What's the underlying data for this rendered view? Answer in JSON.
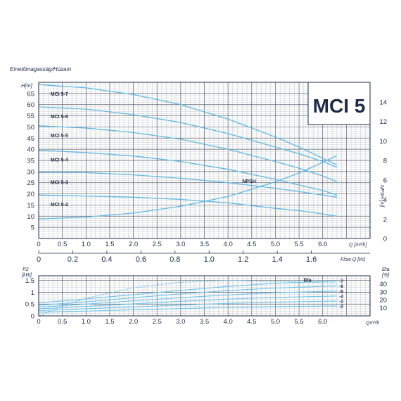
{
  "chart_data": [
    {
      "type": "line",
      "title": "MCI 5",
      "caption": "Emelőmagasság/Hozam",
      "ylabel": "H[m]",
      "y2label": "NPSH [m]",
      "xlabel": "Q [m³/h]",
      "x2label": "Flow Q [l/s]",
      "xlim": [
        0,
        7.0
      ],
      "ylim": [
        0,
        70
      ],
      "y2lim": [
        0,
        16
      ],
      "x_ticks": [
        "0",
        "0.5",
        "1.0",
        "1.5",
        "2.0",
        "2.5",
        "3.0",
        "3.5",
        "4.0",
        "4.5",
        "5.0",
        "5.5",
        "6.0"
      ],
      "x2_ticks": [
        "0",
        "0.2",
        "0.4",
        "0.6",
        "0.8",
        "1.0",
        "1.2",
        "1.4",
        "1.6"
      ],
      "y_ticks": [
        "5",
        "10",
        "15",
        "20",
        "25",
        "30",
        "35",
        "40",
        "45",
        "50",
        "55",
        "60",
        "65"
      ],
      "y2_ticks": [
        "0",
        "2",
        "4",
        "6",
        "8",
        "10",
        "12",
        "14"
      ],
      "grid": true,
      "series": [
        {
          "name": "MCI 5-7",
          "x": [
            0,
            1,
            2,
            3,
            4,
            5,
            5.5,
            6.0,
            6.3
          ],
          "y": [
            69,
            67.5,
            64.5,
            60,
            53.5,
            45.5,
            41,
            36,
            33
          ]
        },
        {
          "name": "MCI 5-6",
          "x": [
            0,
            1,
            2,
            3,
            4,
            5,
            5.5,
            6.0,
            6.3
          ],
          "y": [
            59,
            58,
            55.5,
            52,
            47,
            41,
            38,
            34.5,
            32
          ]
        },
        {
          "name": "MCI 5-5",
          "x": [
            0,
            1,
            2,
            3,
            4,
            5,
            5.5,
            6.0,
            6.3
          ],
          "y": [
            50.5,
            49.5,
            47.5,
            44.5,
            40,
            34.5,
            31.5,
            28,
            25.5
          ]
        },
        {
          "name": "MCI 5-4",
          "x": [
            0,
            1,
            2,
            3,
            4,
            5,
            5.5,
            6.0,
            6.3
          ],
          "y": [
            39.5,
            38.5,
            37,
            34.5,
            31,
            26.5,
            24,
            21.5,
            19.5
          ]
        },
        {
          "name": "MCI 5-3",
          "x": [
            0,
            1,
            2,
            3,
            4,
            5,
            5.5,
            6.0,
            6.3
          ],
          "y": [
            29.5,
            29.5,
            28.5,
            27,
            25,
            22.5,
            21,
            19.5,
            18.5
          ]
        },
        {
          "name": "MCI 5-2",
          "x": [
            0,
            1,
            2,
            3,
            4,
            5,
            5.5,
            6.0,
            6.3
          ],
          "y": [
            19.5,
            19,
            18.5,
            17.5,
            16,
            13.5,
            12.5,
            11,
            10
          ]
        },
        {
          "name": "NPSH",
          "axis": "y2",
          "x": [
            0,
            1,
            2,
            3,
            4,
            5,
            5.5,
            6.0,
            6.3
          ],
          "y": [
            2,
            2.2,
            2.6,
            3.3,
            4.3,
            5.8,
            6.7,
            7.8,
            8.5
          ]
        }
      ]
    },
    {
      "type": "line",
      "ylabel": "P2 [kW]",
      "y2label": "Eta [%]",
      "xlabel": "Qm³/h",
      "xlim": [
        0,
        7.0
      ],
      "ylim": [
        0,
        1.7
      ],
      "y2lim": [
        0,
        50
      ],
      "x_ticks": [
        "0",
        "0.5",
        "1.0",
        "1.5",
        "2.0",
        "2.5",
        "3.0",
        "3.5",
        "4.0",
        "4.5",
        "5.0",
        "5.5",
        "6.0"
      ],
      "y_ticks": [
        "0",
        "0.5",
        "1",
        "1.5"
      ],
      "y2_ticks": [
        "10",
        "20",
        "30",
        "40"
      ],
      "grid": true,
      "series": [
        {
          "name": "Eta",
          "axis": "y2",
          "x": [
            0,
            0.5,
            1,
            2,
            3,
            4,
            5,
            6.3
          ],
          "y": [
            0,
            12,
            22,
            35,
            42,
            44,
            43,
            41
          ]
        },
        {
          "name": "-7",
          "x": [
            0,
            1,
            2,
            3,
            4,
            5,
            6.3
          ],
          "y": [
            0.55,
            0.72,
            0.9,
            1.08,
            1.25,
            1.38,
            1.48
          ]
        },
        {
          "name": "-6",
          "x": [
            0,
            1,
            2,
            3,
            4,
            5,
            6.3
          ],
          "y": [
            0.45,
            0.6,
            0.77,
            0.93,
            1.07,
            1.18,
            1.27
          ]
        },
        {
          "name": "-5",
          "x": [
            0,
            1,
            2,
            3,
            4,
            5,
            6.3
          ],
          "y": [
            0.37,
            0.5,
            0.64,
            0.77,
            0.89,
            0.98,
            1.05
          ]
        },
        {
          "name": "-4",
          "x": [
            0,
            1,
            2,
            3,
            4,
            5,
            6.3
          ],
          "y": [
            0.3,
            0.4,
            0.51,
            0.62,
            0.71,
            0.78,
            0.84
          ]
        },
        {
          "name": "-3",
          "x": [
            0,
            1,
            2,
            3,
            4,
            5,
            6.3
          ],
          "y": [
            0.22,
            0.3,
            0.38,
            0.46,
            0.53,
            0.58,
            0.63
          ]
        },
        {
          "name": "-2",
          "x": [
            0,
            1,
            2,
            3,
            4,
            5,
            6.3
          ],
          "y": [
            0.15,
            0.2,
            0.26,
            0.31,
            0.36,
            0.39,
            0.42
          ]
        }
      ]
    }
  ]
}
